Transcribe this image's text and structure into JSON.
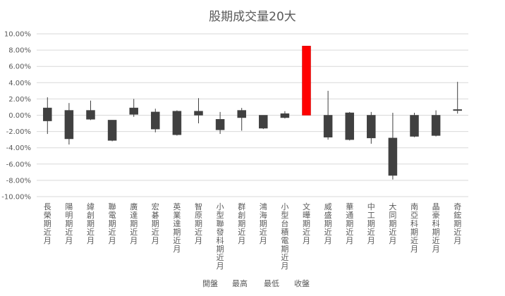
{
  "chart_data": {
    "type": "candlestick",
    "title": "股期成交量20大",
    "y_ticks": [
      "10.00%",
      "8.00%",
      "6.00%",
      "4.00%",
      "2.00%",
      "0.00%",
      "-2.00%",
      "-4.00%",
      "-6.00%",
      "-8.00%",
      "-10.00%"
    ],
    "ylim": [
      -10,
      10
    ],
    "grid": true,
    "legend_position": "bottom",
    "legend": [
      "開盤",
      "最高",
      "最低",
      "收盤"
    ],
    "colors": {
      "bar": "#404040",
      "highlight": "#ff0000",
      "wick": "#404040",
      "grid": "#d9d9d9",
      "text": "#595959"
    },
    "categories": [
      "長榮期近月",
      "陽明期近月",
      "緯創期近月",
      "聯電期近月",
      "廣達期近月",
      "宏碁期近月",
      "英業達期近月",
      "智原期近月",
      "小型聯發科期近月",
      "群創期近月",
      "鴻海期近月",
      "小型台積電期近月",
      "文曄期近月",
      "威盛期近月",
      "華通期近月",
      "中工期近月",
      "大同期近月",
      "南亞科期近月",
      "晶豪科期近月",
      "奇鋐期近月"
    ],
    "open": [
      0.9,
      0.6,
      0.6,
      -0.6,
      0.9,
      0.4,
      0.5,
      0.5,
      -0.5,
      0.6,
      0.0,
      0.2,
      0.0,
      0.0,
      0.3,
      0.0,
      -2.8,
      0.0,
      0.0,
      0.6
    ],
    "high": [
      2.2,
      1.5,
      1.8,
      -0.6,
      2.0,
      0.8,
      0.6,
      2.1,
      0.4,
      0.9,
      0.0,
      0.5,
      8.5,
      3.0,
      0.4,
      0.4,
      0.3,
      0.3,
      0.6,
      4.1
    ],
    "low": [
      -2.3,
      -3.6,
      -0.6,
      -3.2,
      -0.2,
      -2.1,
      -2.5,
      -1.0,
      -2.3,
      -1.9,
      -1.7,
      -0.4,
      0.0,
      -3.0,
      -3.1,
      -3.5,
      -7.9,
      -2.7,
      -2.6,
      0.2
    ],
    "close": [
      -0.7,
      -2.9,
      -0.5,
      -3.1,
      0.1,
      -1.7,
      -2.4,
      0.0,
      -1.8,
      -0.3,
      -1.6,
      -0.3,
      8.5,
      -2.7,
      -3.0,
      -2.8,
      -7.4,
      -2.6,
      -2.5,
      0.7
    ],
    "highlight_index": 12
  }
}
